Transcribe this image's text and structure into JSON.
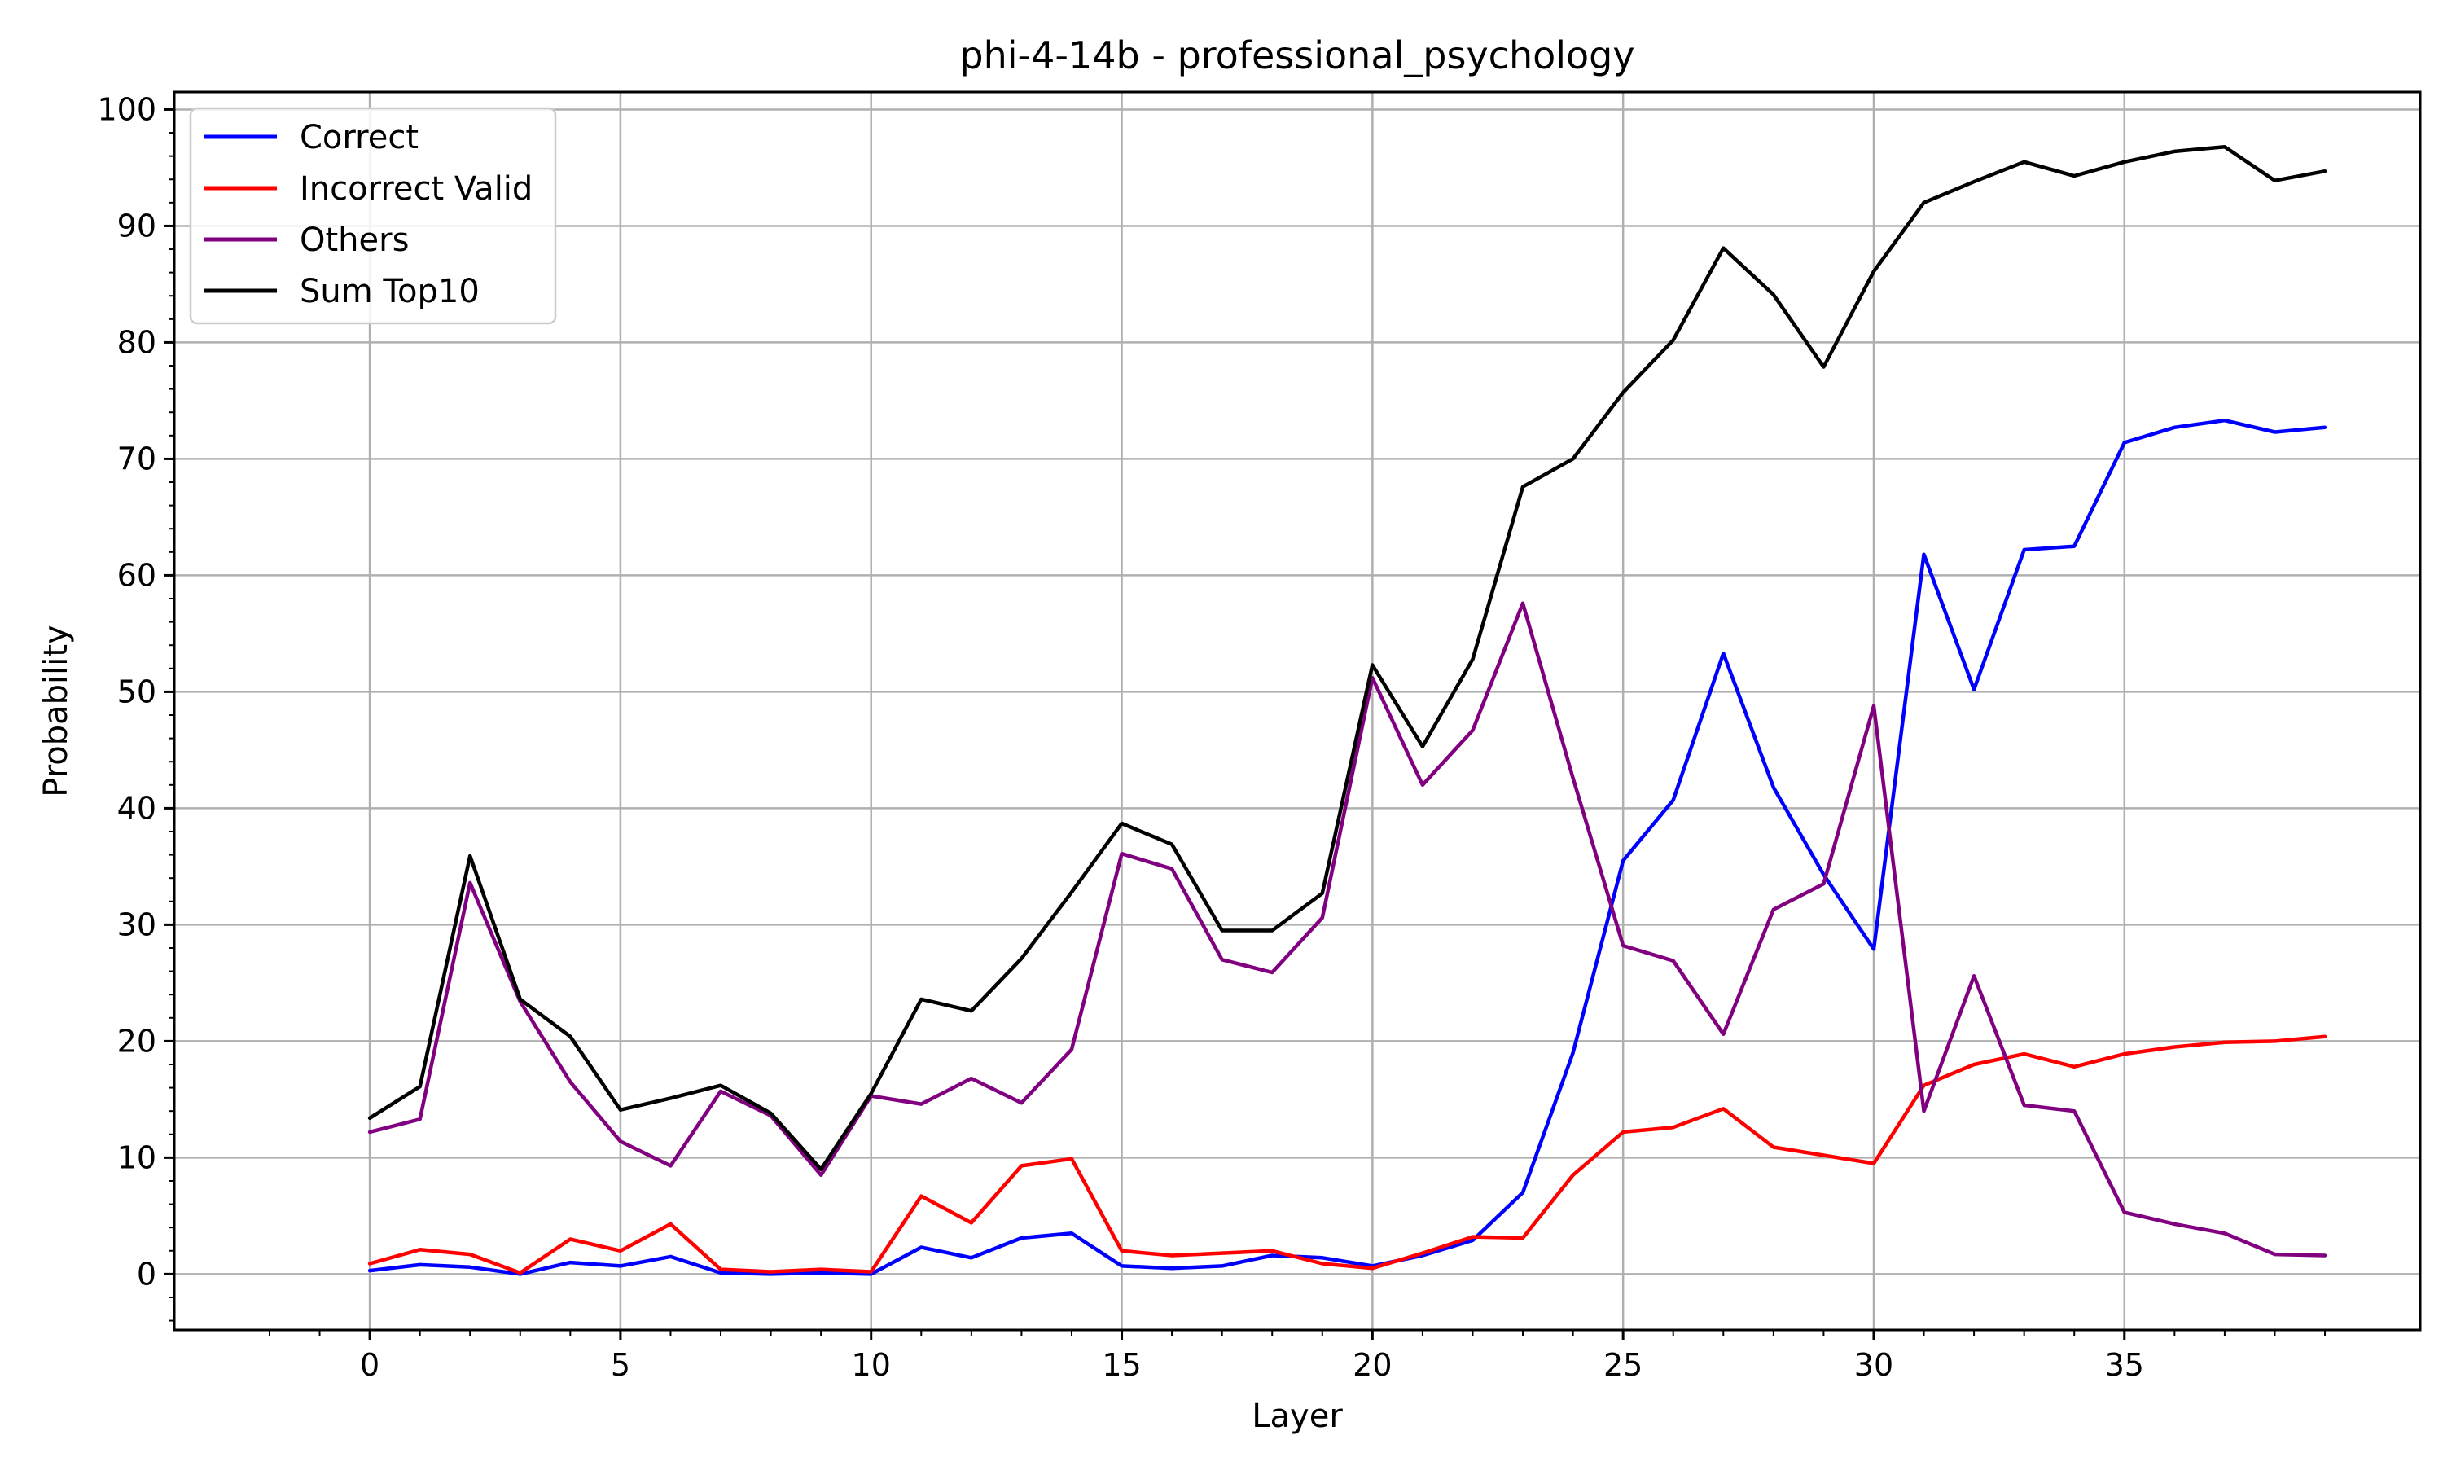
{
  "chart_data": {
    "type": "line",
    "title": "phi-4-14b - professional_psychology",
    "xlabel": "Layer",
    "ylabel": "Probability",
    "xlim": [
      -3.9,
      40.9
    ],
    "ylim": [
      -4.8,
      101.5
    ],
    "xticks": [
      0,
      5,
      10,
      15,
      20,
      25,
      30,
      35
    ],
    "yticks": [
      0,
      10,
      20,
      30,
      40,
      50,
      60,
      70,
      80,
      90,
      100
    ],
    "grid": true,
    "legend_position": "upper left",
    "x": [
      0,
      1,
      2,
      3,
      4,
      5,
      6,
      7,
      8,
      9,
      10,
      11,
      12,
      13,
      14,
      15,
      16,
      17,
      18,
      19,
      20,
      21,
      22,
      23,
      24,
      25,
      26,
      27,
      28,
      29,
      30,
      31,
      32,
      33,
      34,
      35,
      36,
      37,
      38,
      39
    ],
    "series": [
      {
        "name": "Correct",
        "color": "#0000ff",
        "values": [
          0.3,
          0.8,
          0.6,
          0.0,
          1.0,
          0.7,
          1.5,
          0.1,
          0.0,
          0.1,
          0.0,
          2.3,
          1.4,
          3.1,
          3.5,
          0.7,
          0.5,
          0.7,
          1.6,
          1.4,
          0.7,
          1.6,
          2.9,
          7.0,
          19.0,
          35.5,
          40.7,
          53.3,
          41.8,
          34.3,
          27.9,
          61.8,
          50.2,
          62.2,
          62.5,
          71.4,
          72.7,
          73.3,
          72.3,
          72.7
        ]
      },
      {
        "name": "Incorrect Valid",
        "color": "#ff0000",
        "values": [
          0.9,
          2.1,
          1.7,
          0.1,
          3.0,
          2.0,
          4.3,
          0.4,
          0.2,
          0.4,
          0.2,
          6.7,
          4.4,
          9.3,
          9.9,
          2.0,
          1.6,
          1.8,
          2.0,
          0.9,
          0.5,
          1.8,
          3.2,
          3.1,
          8.5,
          12.2,
          12.6,
          14.2,
          10.9,
          10.2,
          9.5,
          16.2,
          18.0,
          18.9,
          17.8,
          18.9,
          19.5,
          19.9,
          20.0,
          20.4
        ]
      },
      {
        "name": "Others",
        "color": "#800080",
        "values": [
          12.2,
          13.3,
          33.6,
          23.4,
          16.5,
          11.4,
          9.3,
          15.7,
          13.6,
          8.5,
          15.3,
          14.6,
          16.8,
          14.7,
          19.3,
          36.1,
          34.8,
          27.0,
          25.9,
          30.6,
          51.2,
          42.0,
          46.7,
          57.6,
          42.6,
          28.2,
          26.9,
          20.6,
          31.3,
          33.5,
          48.8,
          14.0,
          25.6,
          14.5,
          14.0,
          5.3,
          4.3,
          3.5,
          1.7,
          1.6
        ]
      },
      {
        "name": "Sum Top10",
        "color": "#000000",
        "values": [
          13.4,
          16.1,
          35.9,
          23.6,
          20.4,
          14.1,
          15.1,
          16.2,
          13.8,
          9.0,
          15.5,
          23.6,
          22.6,
          27.1,
          32.8,
          38.7,
          36.9,
          29.5,
          29.5,
          32.7,
          52.3,
          45.3,
          52.8,
          67.6,
          70.0,
          75.7,
          80.2,
          88.1,
          84.1,
          77.9,
          86.1,
          92.0,
          93.8,
          95.5,
          94.3,
          95.5,
          96.4,
          96.8,
          93.9,
          94.7
        ]
      }
    ]
  }
}
